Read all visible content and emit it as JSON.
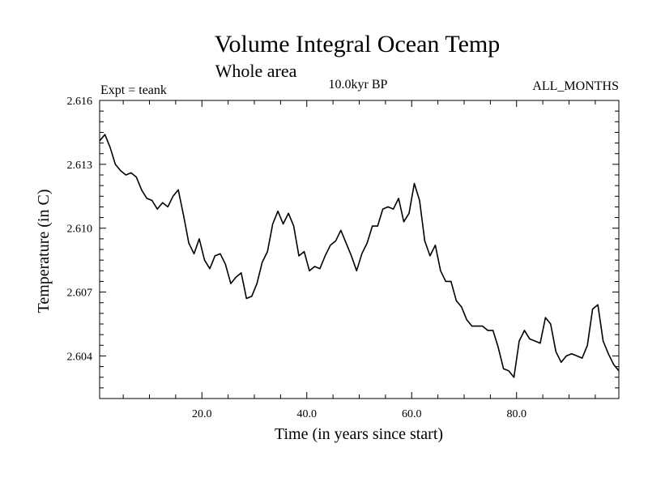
{
  "chart_data": {
    "type": "line",
    "title": "Volume Integral Ocean Temp",
    "subtitle": "Whole area",
    "annotations": {
      "experiment": "Expt = teank",
      "period": "10.0kyr BP",
      "months": "ALL_MONTHS"
    },
    "xlabel": "Time (in years since start)",
    "ylabel": "Temperature (in C)",
    "xlim": [
      0.5,
      99.5
    ],
    "ylim": [
      2.602,
      2.616
    ],
    "x_ticks": [
      20,
      40,
      60,
      80
    ],
    "x_tick_labels": [
      "20.0",
      "40.0",
      "60.0",
      "80.0"
    ],
    "y_ticks": [
      2.616,
      2.613,
      2.61,
      2.607,
      2.604
    ],
    "y_tick_labels": [
      "2.616",
      "2.613",
      "2.610",
      "2.607",
      "2.604"
    ],
    "grid": false,
    "series": [
      {
        "name": "Volume Integral Ocean Temp",
        "color": "#000000",
        "x": [
          0.5,
          1.5,
          2.5,
          3.5,
          4.5,
          5.5,
          6.5,
          7.5,
          8.5,
          9.5,
          10.5,
          11.5,
          12.5,
          13.5,
          14.5,
          15.5,
          16.5,
          17.5,
          18.5,
          19.5,
          20.5,
          21.5,
          22.5,
          23.5,
          24.5,
          25.5,
          26.5,
          27.5,
          28.5,
          29.5,
          30.5,
          31.5,
          32.5,
          33.5,
          34.5,
          35.5,
          36.5,
          37.5,
          38.5,
          39.5,
          40.5,
          41.5,
          42.5,
          43.5,
          44.5,
          45.5,
          46.5,
          47.5,
          48.5,
          49.5,
          50.5,
          51.5,
          52.5,
          53.5,
          54.5,
          55.5,
          56.5,
          57.5,
          58.5,
          59.5,
          60.5,
          61.5,
          62.5,
          63.5,
          64.5,
          65.5,
          66.5,
          67.5,
          68.5,
          69.5,
          70.5,
          71.5,
          72.5,
          73.5,
          74.5,
          75.5,
          76.5,
          77.5,
          78.5,
          79.5,
          80.5,
          81.5,
          82.5,
          83.5,
          84.5,
          85.5,
          86.5,
          87.5,
          88.5,
          89.5,
          90.5,
          91.5,
          92.5,
          93.5,
          94.5,
          95.5,
          96.5,
          97.5,
          98.5,
          99.5
        ],
        "values": [
          2.6141,
          2.6144,
          2.6138,
          2.613,
          2.6127,
          2.6125,
          2.6126,
          2.6124,
          2.6118,
          2.6114,
          2.6113,
          2.6109,
          2.6112,
          2.611,
          2.6115,
          2.6118,
          2.6106,
          2.6093,
          2.6088,
          2.6095,
          2.6085,
          2.6081,
          2.6087,
          2.6088,
          2.6083,
          2.6074,
          2.6077,
          2.6079,
          2.6067,
          2.6068,
          2.6074,
          2.6084,
          2.6089,
          2.6102,
          2.6108,
          2.6102,
          2.6107,
          2.6101,
          2.6087,
          2.6089,
          2.608,
          2.6082,
          2.6081,
          2.6087,
          2.6092,
          2.6094,
          2.6099,
          2.6093,
          2.6087,
          2.608,
          2.6088,
          2.6093,
          2.6101,
          2.6101,
          2.6109,
          2.611,
          2.6109,
          2.6114,
          2.6103,
          2.6107,
          2.6121,
          2.6113,
          2.6094,
          2.6087,
          2.6092,
          2.608,
          2.6075,
          2.6075,
          2.6066,
          2.6063,
          2.6057,
          2.6054,
          2.6054,
          2.6054,
          2.6052,
          2.6052,
          2.6044,
          2.6034,
          2.6033,
          2.603,
          2.6047,
          2.6052,
          2.6048,
          2.6047,
          2.6046,
          2.6058,
          2.6055,
          2.6042,
          2.6037,
          2.604,
          2.6041,
          2.604,
          2.6039,
          2.6045,
          2.6062,
          2.6064,
          2.6047,
          2.6041,
          2.6036,
          2.6033
        ]
      }
    ]
  }
}
